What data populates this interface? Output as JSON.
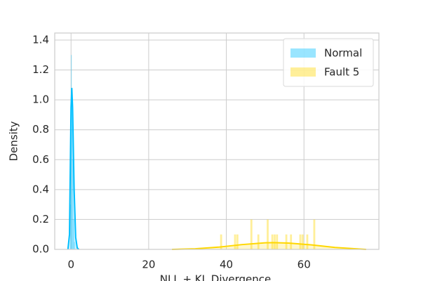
{
  "chart_data": {
    "type": "histogram_kde",
    "xlabel": "NLL + KL Divergence",
    "ylabel": "Density",
    "xlim": [
      -4.2,
      79.3
    ],
    "ylim": [
      0,
      1.447
    ],
    "xticks": [
      0,
      20,
      40,
      60
    ],
    "yticks": [
      {
        "value": 0,
        "label": "0.0"
      },
      {
        "value": 0.2,
        "label": "0.2"
      },
      {
        "value": 0.4,
        "label": "0.4"
      },
      {
        "value": 0.6,
        "label": "0.6"
      },
      {
        "value": 0.8,
        "label": "0.8"
      },
      {
        "value": 1.0,
        "label": "1.0"
      },
      {
        "value": 1.2,
        "label": "1.2"
      },
      {
        "value": 1.4,
        "label": "1.4"
      }
    ],
    "grid": true,
    "legend": "upper right",
    "series": [
      {
        "name": "Normal",
        "color": "#00bfff",
        "bins": [
          -0.2,
          0,
          0.2,
          0.4,
          0.6,
          0.8,
          1.0
        ],
        "counts": [
          0.3,
          1.3,
          1.0,
          0.6,
          0.2,
          0.05
        ],
        "kde_x": [
          -0.8,
          -0.4,
          0,
          0.2,
          0.4,
          0.8,
          1.2,
          1.6,
          2.0
        ],
        "kde_y": [
          0,
          0.1,
          0.95,
          1.08,
          0.95,
          0.4,
          0.08,
          0.01,
          0
        ]
      },
      {
        "name": "Fault 5",
        "color": "#ffd700",
        "bins": [
          38.4,
          39,
          39.6,
          40.2,
          40.8,
          41.4,
          42,
          42.6,
          43.2,
          43.8,
          44.4,
          45,
          45.6,
          46.2,
          46.8,
          47.4,
          48,
          48.6,
          49.2,
          49.8,
          50.4,
          51,
          51.6,
          52.2,
          52.8,
          53.4,
          54,
          54.6,
          55.2,
          55.8,
          56.4,
          57,
          57.6,
          58.2,
          58.8,
          59.4,
          60,
          60.6,
          61.2,
          61.8,
          62.4,
          63,
          63.6
        ],
        "counts": [
          0.1,
          0,
          0,
          0,
          0,
          0,
          0.1,
          0.1,
          0,
          0,
          0,
          0,
          0,
          0.2,
          0,
          0,
          0.1,
          0,
          0,
          0,
          0.2,
          0,
          0.1,
          0.1,
          0.1,
          0,
          0,
          0,
          0.1,
          0,
          0.1,
          0,
          0,
          0,
          0.1,
          0.1,
          0,
          0.1,
          0,
          0,
          0.2,
          0
        ],
        "kde_x": [
          26,
          32,
          38,
          44,
          50,
          52,
          56,
          62,
          68,
          74,
          76
        ],
        "kde_y": [
          0,
          0.004,
          0.015,
          0.032,
          0.044,
          0.045,
          0.042,
          0.03,
          0.013,
          0.003,
          0
        ]
      }
    ]
  }
}
